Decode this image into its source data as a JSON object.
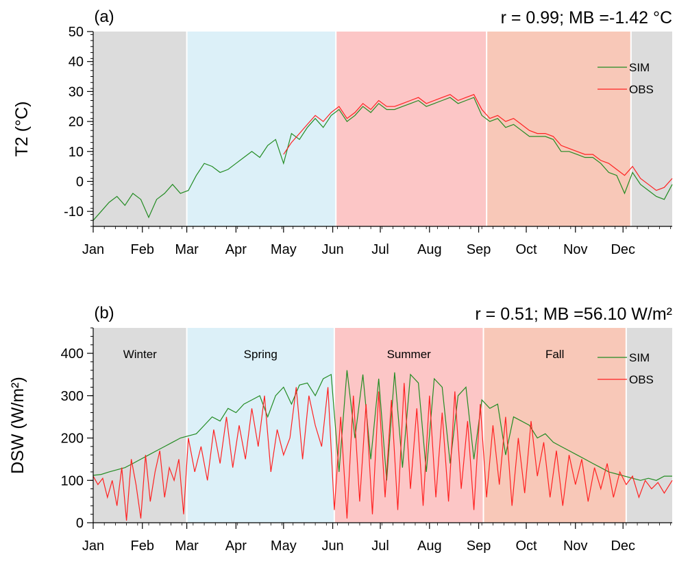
{
  "colors": {
    "winter": "#dcdcdc",
    "spring": "#dcf0f8",
    "summer": "#fcc6c6",
    "fall": "#f8c8b8",
    "sim": "#228b22",
    "obs": "#ff2020"
  },
  "chart_data": [
    {
      "type": "line",
      "panel_label": "(a)",
      "stats": "r = 0.99; MB =-1.42 °C",
      "ylabel": "T2 (°C)",
      "ylim": [
        -15,
        50
      ],
      "yticks": [
        -10,
        0,
        10,
        20,
        30,
        40,
        50
      ],
      "x_unit": "day of year",
      "xlim": [
        0,
        365
      ],
      "month_ticks": {
        "labels": [
          "Jan",
          "Feb",
          "Mar",
          "Apr",
          "May",
          "Jun",
          "Jul",
          "Aug",
          "Sep",
          "Oct",
          "Nov",
          "Dec"
        ],
        "days": [
          0,
          31,
          59,
          90,
          120,
          151,
          181,
          212,
          243,
          273,
          304,
          334
        ]
      },
      "seasons": [
        {
          "name": "winter",
          "label": "",
          "start": 0,
          "end": 59
        },
        {
          "name": "spring",
          "label": "",
          "start": 59,
          "end": 153
        },
        {
          "name": "summer",
          "label": "",
          "start": 153,
          "end": 248
        },
        {
          "name": "fall",
          "label": "",
          "start": 248,
          "end": 339
        },
        {
          "name": "winter",
          "label": "",
          "start": 339,
          "end": 365
        }
      ],
      "legend": {
        "placement": "top-right",
        "entries": [
          "SIM",
          "OBS"
        ]
      },
      "series": [
        {
          "name": "SIM",
          "color_key": "sim",
          "x": [
            0,
            5,
            10,
            15,
            20,
            25,
            30,
            35,
            40,
            45,
            50,
            55,
            60,
            65,
            70,
            75,
            80,
            85,
            90,
            95,
            100,
            105,
            110,
            115,
            120,
            125,
            130,
            135,
            140,
            145,
            150,
            155,
            160,
            165,
            170,
            175,
            180,
            185,
            190,
            195,
            200,
            205,
            210,
            215,
            220,
            225,
            230,
            235,
            240,
            245,
            250,
            255,
            260,
            265,
            270,
            275,
            280,
            285,
            290,
            295,
            300,
            305,
            310,
            315,
            320,
            325,
            330,
            335,
            340,
            345,
            350,
            355,
            360,
            365
          ],
          "y": [
            -13,
            -10,
            -7,
            -5,
            -8,
            -4,
            -6,
            -12,
            -6,
            -4,
            -1,
            -4,
            -3,
            2,
            6,
            5,
            3,
            4,
            6,
            8,
            10,
            8,
            12,
            14,
            6,
            16,
            14,
            18,
            21,
            18,
            22,
            24,
            20,
            22,
            25,
            23,
            26,
            24,
            24,
            25,
            26,
            27,
            25,
            26,
            27,
            28,
            26,
            27,
            28,
            22,
            20,
            21,
            18,
            19,
            17,
            15,
            15,
            15,
            14,
            10,
            10,
            9,
            8,
            8,
            6,
            3,
            2,
            -4,
            3,
            -1,
            -3,
            -5,
            -6,
            -1
          ]
        },
        {
          "name": "OBS",
          "color_key": "obs",
          "x": [
            120,
            125,
            130,
            135,
            140,
            145,
            150,
            155,
            160,
            165,
            170,
            175,
            180,
            185,
            190,
            195,
            200,
            205,
            210,
            215,
            220,
            225,
            230,
            235,
            240,
            245,
            250,
            255,
            260,
            265,
            270,
            275,
            280,
            285,
            290,
            295,
            300,
            305,
            310,
            315,
            320,
            325,
            330,
            335,
            340,
            345,
            350,
            355,
            360,
            365
          ],
          "y": [
            9,
            13,
            16,
            19,
            22,
            20,
            23,
            25,
            21,
            23,
            26,
            24,
            27,
            25,
            25,
            26,
            27,
            28,
            26,
            27,
            28,
            29,
            27,
            28,
            29,
            24,
            21,
            22,
            20,
            21,
            19,
            17,
            16,
            16,
            15,
            12,
            11,
            10,
            9,
            9,
            7,
            6,
            4,
            2,
            5,
            1,
            -1,
            -3,
            -2,
            1
          ]
        }
      ]
    },
    {
      "type": "line",
      "panel_label": "(b)",
      "stats": "r = 0.51; MB =56.10 W/m²",
      "ylabel": "DSW (W/m²)",
      "ylim": [
        0,
        460
      ],
      "yticks": [
        0,
        100,
        200,
        300,
        400
      ],
      "x_unit": "day of year",
      "xlim": [
        0,
        365
      ],
      "month_ticks": {
        "labels": [
          "Jan",
          "Feb",
          "Mar",
          "Apr",
          "May",
          "Jun",
          "Jul",
          "Aug",
          "Sep",
          "Oct",
          "Nov",
          "Dec"
        ],
        "days": [
          0,
          31,
          59,
          90,
          120,
          151,
          181,
          212,
          243,
          273,
          304,
          334
        ]
      },
      "seasons": [
        {
          "name": "winter",
          "label": "Winter",
          "start": 0,
          "end": 59
        },
        {
          "name": "spring",
          "label": "Spring",
          "start": 59,
          "end": 152
        },
        {
          "name": "summer",
          "label": "Summer",
          "start": 152,
          "end": 246
        },
        {
          "name": "fall",
          "label": "Fall",
          "start": 246,
          "end": 336
        },
        {
          "name": "winter",
          "label": "",
          "start": 336,
          "end": 365
        }
      ],
      "legend": {
        "placement": "top-right",
        "entries": [
          "SIM",
          "OBS"
        ]
      },
      "series": [
        {
          "name": "SIM",
          "color_key": "sim",
          "x": [
            0,
            5,
            10,
            15,
            20,
            25,
            30,
            35,
            40,
            45,
            50,
            55,
            60,
            65,
            70,
            75,
            80,
            85,
            90,
            95,
            100,
            105,
            110,
            115,
            120,
            125,
            130,
            135,
            140,
            145,
            150,
            155,
            160,
            165,
            170,
            175,
            180,
            185,
            190,
            195,
            200,
            205,
            210,
            215,
            220,
            225,
            230,
            235,
            240,
            245,
            250,
            255,
            260,
            265,
            270,
            275,
            280,
            285,
            290,
            295,
            300,
            305,
            310,
            315,
            320,
            325,
            330,
            335,
            340,
            345,
            350,
            355,
            360,
            365
          ],
          "y": [
            112,
            114,
            120,
            125,
            130,
            140,
            150,
            160,
            170,
            180,
            190,
            200,
            205,
            210,
            230,
            250,
            240,
            270,
            260,
            280,
            290,
            300,
            250,
            300,
            320,
            280,
            325,
            330,
            300,
            340,
            350,
            120,
            360,
            200,
            350,
            150,
            340,
            100,
            355,
            130,
            350,
            330,
            120,
            340,
            320,
            140,
            300,
            320,
            150,
            290,
            270,
            280,
            160,
            250,
            240,
            230,
            200,
            210,
            190,
            180,
            170,
            160,
            150,
            140,
            130,
            120,
            115,
            110,
            105,
            100,
            105,
            100,
            110,
            110
          ]
        },
        {
          "name": "OBS",
          "color_key": "obs",
          "x": [
            0,
            3,
            6,
            9,
            12,
            15,
            18,
            21,
            24,
            27,
            30,
            33,
            36,
            39,
            42,
            45,
            48,
            51,
            54,
            57,
            60,
            64,
            68,
            72,
            76,
            80,
            84,
            88,
            92,
            96,
            100,
            104,
            108,
            112,
            116,
            120,
            124,
            128,
            132,
            136,
            140,
            144,
            148,
            152,
            156,
            160,
            164,
            168,
            172,
            176,
            180,
            184,
            188,
            192,
            196,
            200,
            204,
            208,
            212,
            216,
            220,
            224,
            228,
            232,
            236,
            240,
            244,
            248,
            252,
            256,
            260,
            264,
            268,
            272,
            276,
            280,
            284,
            288,
            292,
            296,
            300,
            304,
            308,
            312,
            316,
            320,
            324,
            328,
            332,
            336,
            340,
            344,
            348,
            352,
            356,
            360,
            365
          ],
          "y": [
            110,
            90,
            105,
            60,
            100,
            40,
            130,
            5,
            150,
            90,
            10,
            160,
            50,
            120,
            170,
            60,
            130,
            100,
            150,
            20,
            200,
            120,
            180,
            100,
            220,
            140,
            250,
            130,
            230,
            150,
            270,
            180,
            300,
            120,
            220,
            160,
            200,
            320,
            150,
            300,
            230,
            180,
            320,
            30,
            250,
            10,
            300,
            50,
            280,
            20,
            310,
            60,
            290,
            30,
            330,
            80,
            270,
            40,
            300,
            60,
            260,
            50,
            310,
            80,
            240,
            30,
            280,
            60,
            230,
            90,
            250,
            40,
            200,
            70,
            240,
            110,
            190,
            60,
            170,
            40,
            160,
            90,
            150,
            50,
            130,
            80,
            140,
            60,
            120,
            90,
            110,
            60,
            100,
            80,
            95,
            70,
            100
          ]
        }
      ]
    }
  ]
}
